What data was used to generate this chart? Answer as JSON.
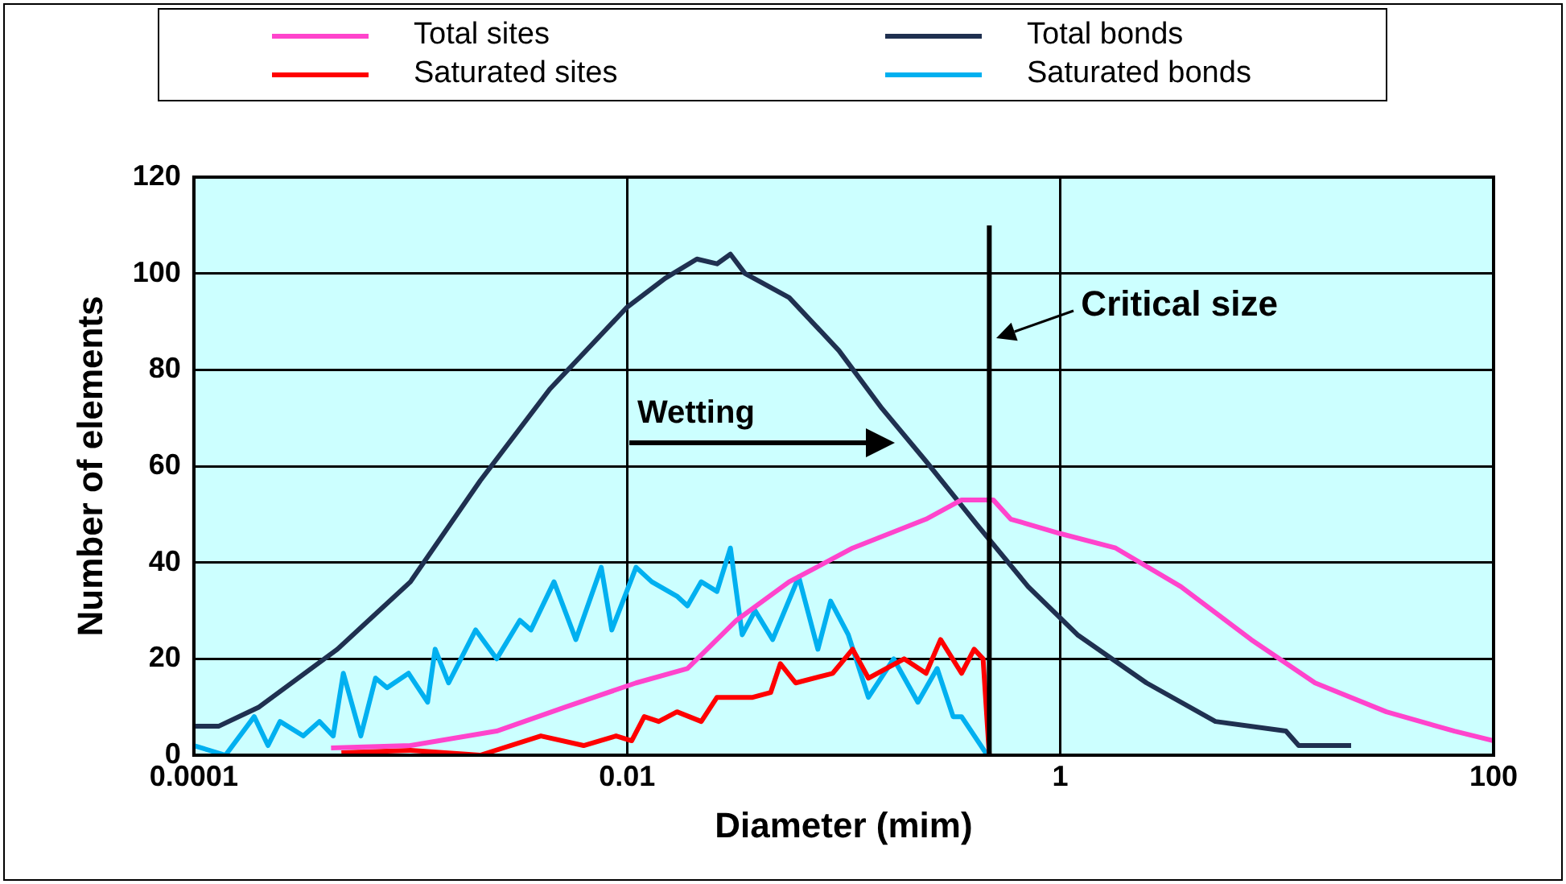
{
  "chart_data": {
    "type": "line",
    "xlabel": "Diameter (mim)",
    "ylabel": "Number of elements",
    "log": "x",
    "xlim": [
      0.0001,
      100
    ],
    "xticks": [
      0.0001,
      0.01,
      1,
      100
    ],
    "ylim": [
      0,
      120
    ],
    "yticks": [
      0,
      20,
      40,
      60,
      80,
      100,
      120
    ],
    "grid": true,
    "legend": "top",
    "marker": "none",
    "line_style": "solid",
    "series": [
      {
        "name": "Total sites",
        "color": "#ff44cc",
        "x": [
          0.00043,
          0.001,
          0.0025,
          0.0052,
          0.011,
          0.019,
          0.032,
          0.056,
          0.11,
          0.24,
          0.35,
          0.49,
          0.59,
          1.0,
          1.8,
          3.6,
          7.6,
          15,
          32,
          66,
          100
        ],
        "values": [
          1.5,
          2,
          5,
          10,
          15,
          18,
          28,
          36,
          43,
          49,
          53,
          53,
          49,
          46,
          43,
          35,
          24,
          15,
          9,
          5,
          3
        ]
      },
      {
        "name": "Total bonds",
        "color": "#1f3050",
        "x": [
          0.0001,
          0.00013,
          0.0002,
          0.00046,
          0.001,
          0.0021,
          0.0044,
          0.01,
          0.015,
          0.021,
          0.026,
          0.03,
          0.035,
          0.056,
          0.095,
          0.15,
          0.24,
          0.41,
          0.71,
          1.2,
          2.5,
          5.2,
          11,
          12.6,
          22
        ],
        "values": [
          6,
          6,
          10,
          22,
          36,
          57,
          76,
          93,
          99,
          103,
          102,
          104,
          100,
          95,
          84,
          72,
          61,
          48,
          35,
          25,
          15,
          7,
          5,
          2,
          2
        ]
      },
      {
        "name": "Saturated sites",
        "color": "#ff0000",
        "x": [
          0.00048,
          0.001,
          0.0021,
          0.004,
          0.0063,
          0.0089,
          0.0105,
          0.012,
          0.014,
          0.017,
          0.022,
          0.026,
          0.038,
          0.046,
          0.051,
          0.06,
          0.089,
          0.11,
          0.13,
          0.19,
          0.24,
          0.28,
          0.35,
          0.4,
          0.44,
          0.47
        ],
        "values": [
          0.5,
          1,
          0,
          4,
          2,
          4,
          3,
          8,
          7,
          9,
          7,
          12,
          12,
          13,
          19,
          15,
          17,
          22,
          16,
          20,
          17,
          24,
          17,
          22,
          20,
          0
        ]
      },
      {
        "name": "Saturated bonds",
        "color": "#00b0f0",
        "x": [
          0.0001,
          0.00014,
          0.00019,
          0.00022,
          0.00025,
          0.00032,
          0.00038,
          0.00044,
          0.00049,
          0.00059,
          0.00069,
          0.00078,
          0.00098,
          0.0012,
          0.0013,
          0.0015,
          0.002,
          0.0025,
          0.0032,
          0.0036,
          0.0046,
          0.0058,
          0.0076,
          0.0085,
          0.011,
          0.013,
          0.017,
          0.019,
          0.022,
          0.026,
          0.03,
          0.034,
          0.039,
          0.047,
          0.062,
          0.076,
          0.087,
          0.105,
          0.13,
          0.17,
          0.22,
          0.27,
          0.32,
          0.35,
          0.46
        ],
        "values": [
          2,
          0,
          8,
          2,
          7,
          4,
          7,
          4,
          17,
          4,
          16,
          14,
          17,
          11,
          22,
          15,
          26,
          20,
          28,
          26,
          36,
          24,
          39,
          26,
          39,
          36,
          33,
          31,
          36,
          34,
          43,
          25,
          30,
          24,
          37,
          22,
          32,
          25,
          12,
          20,
          11,
          18,
          8,
          8,
          0
        ]
      }
    ],
    "ref_lines": [
      {
        "axis": "x",
        "value": 0.47,
        "label": "Critical size",
        "color": "#000000"
      }
    ],
    "annotations": [
      "Wetting"
    ]
  }
}
